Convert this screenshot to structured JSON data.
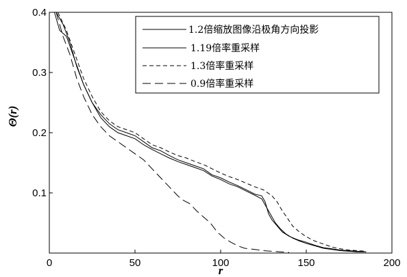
{
  "chart_data": {
    "type": "line",
    "title": "",
    "xlabel": "r",
    "ylabel": "Θ(r)",
    "xlim": [
      0,
      200
    ],
    "ylim": [
      0,
      0.4
    ],
    "xticks": [
      "0",
      "50",
      "100",
      "150",
      "200"
    ],
    "yticks": [
      "0.1",
      "0.2",
      "0.3",
      "0.4"
    ],
    "legend_position": "top-right",
    "grid": false,
    "series": [
      {
        "name": "1.2倍缩放图像沿极角方向投影",
        "dash": "solid",
        "x": [
          3,
          6,
          10,
          15,
          20,
          25,
          30,
          35,
          40,
          45,
          50,
          55,
          60,
          65,
          70,
          75,
          80,
          85,
          90,
          95,
          100,
          105,
          110,
          115,
          120,
          124,
          126,
          128,
          130,
          133,
          136,
          140,
          145,
          150,
          155,
          160,
          165,
          170,
          175,
          180,
          185
        ],
        "y": [
          0.4,
          0.37,
          0.36,
          0.32,
          0.28,
          0.25,
          0.23,
          0.215,
          0.205,
          0.2,
          0.195,
          0.185,
          0.175,
          0.17,
          0.162,
          0.155,
          0.15,
          0.145,
          0.14,
          0.13,
          0.125,
          0.118,
          0.112,
          0.105,
          0.098,
          0.095,
          0.085,
          0.065,
          0.055,
          0.045,
          0.035,
          0.028,
          0.022,
          0.018,
          0.013,
          0.009,
          0.007,
          0.005,
          0.004,
          0.003,
          0.002
        ]
      },
      {
        "name": "1.19倍率重采样",
        "dash": "solid",
        "x": [
          4,
          8,
          12,
          16,
          20,
          25,
          30,
          35,
          40,
          45,
          50,
          55,
          60,
          65,
          70,
          75,
          80,
          85,
          90,
          95,
          100,
          105,
          110,
          115,
          120,
          124,
          127,
          130,
          132,
          135,
          138,
          142,
          146,
          150,
          155,
          160,
          165,
          170,
          175,
          180,
          185
        ],
        "y": [
          0.4,
          0.38,
          0.35,
          0.31,
          0.28,
          0.25,
          0.225,
          0.21,
          0.2,
          0.195,
          0.19,
          0.18,
          0.172,
          0.165,
          0.158,
          0.152,
          0.147,
          0.142,
          0.137,
          0.128,
          0.122,
          0.115,
          0.11,
          0.103,
          0.096,
          0.09,
          0.075,
          0.06,
          0.05,
          0.04,
          0.032,
          0.025,
          0.02,
          0.016,
          0.012,
          0.008,
          0.006,
          0.004,
          0.003,
          0.002,
          0.002
        ]
      },
      {
        "name": "1.3倍率重采样",
        "dash": "dashed",
        "x": [
          5,
          10,
          15,
          20,
          25,
          30,
          35,
          40,
          45,
          50,
          55,
          60,
          65,
          70,
          75,
          80,
          85,
          90,
          95,
          100,
          105,
          110,
          115,
          120,
          125,
          130,
          133,
          136,
          139,
          142,
          146,
          150,
          155,
          160,
          165,
          170,
          175,
          180,
          185
        ],
        "y": [
          0.4,
          0.37,
          0.33,
          0.29,
          0.26,
          0.235,
          0.22,
          0.21,
          0.205,
          0.2,
          0.19,
          0.18,
          0.175,
          0.168,
          0.162,
          0.158,
          0.152,
          0.147,
          0.14,
          0.133,
          0.127,
          0.122,
          0.116,
          0.11,
          0.105,
          0.095,
          0.085,
          0.07,
          0.058,
          0.045,
          0.035,
          0.027,
          0.02,
          0.015,
          0.01,
          0.007,
          0.005,
          0.004,
          0.003
        ]
      },
      {
        "name": "0.9倍率重采样",
        "dash": "longdash",
        "x": [
          4,
          8,
          12,
          16,
          20,
          25,
          30,
          35,
          40,
          45,
          50,
          55,
          60,
          65,
          70,
          75,
          78,
          82,
          86,
          90,
          94,
          98,
          102,
          106,
          110,
          114,
          120,
          125,
          130,
          135,
          140
        ],
        "y": [
          0.4,
          0.36,
          0.33,
          0.29,
          0.26,
          0.23,
          0.21,
          0.195,
          0.185,
          0.175,
          0.165,
          0.155,
          0.14,
          0.125,
          0.11,
          0.095,
          0.088,
          0.082,
          0.07,
          0.06,
          0.05,
          0.035,
          0.025,
          0.018,
          0.012,
          0.008,
          0.006,
          0.004,
          0.003,
          0.002,
          0.001
        ]
      }
    ]
  }
}
